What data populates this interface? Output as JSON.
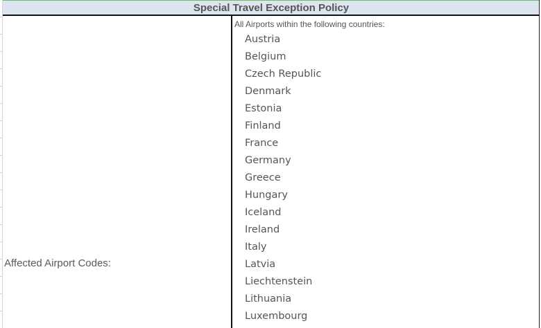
{
  "title": "Special Travel Exception Policy",
  "label": "Affected Airport Codes:",
  "intro": "All Airports within the following countries:",
  "countries": [
    "Austria",
    "Belgium",
    "Czech Republic",
    "Denmark",
    "Estonia",
    "Finland",
    "France",
    "Germany",
    "Greece",
    "Hungary",
    "Iceland",
    "Ireland",
    "Italy",
    "Latvia",
    "Liechtenstein",
    "Lithuania",
    "Luxembourg"
  ]
}
